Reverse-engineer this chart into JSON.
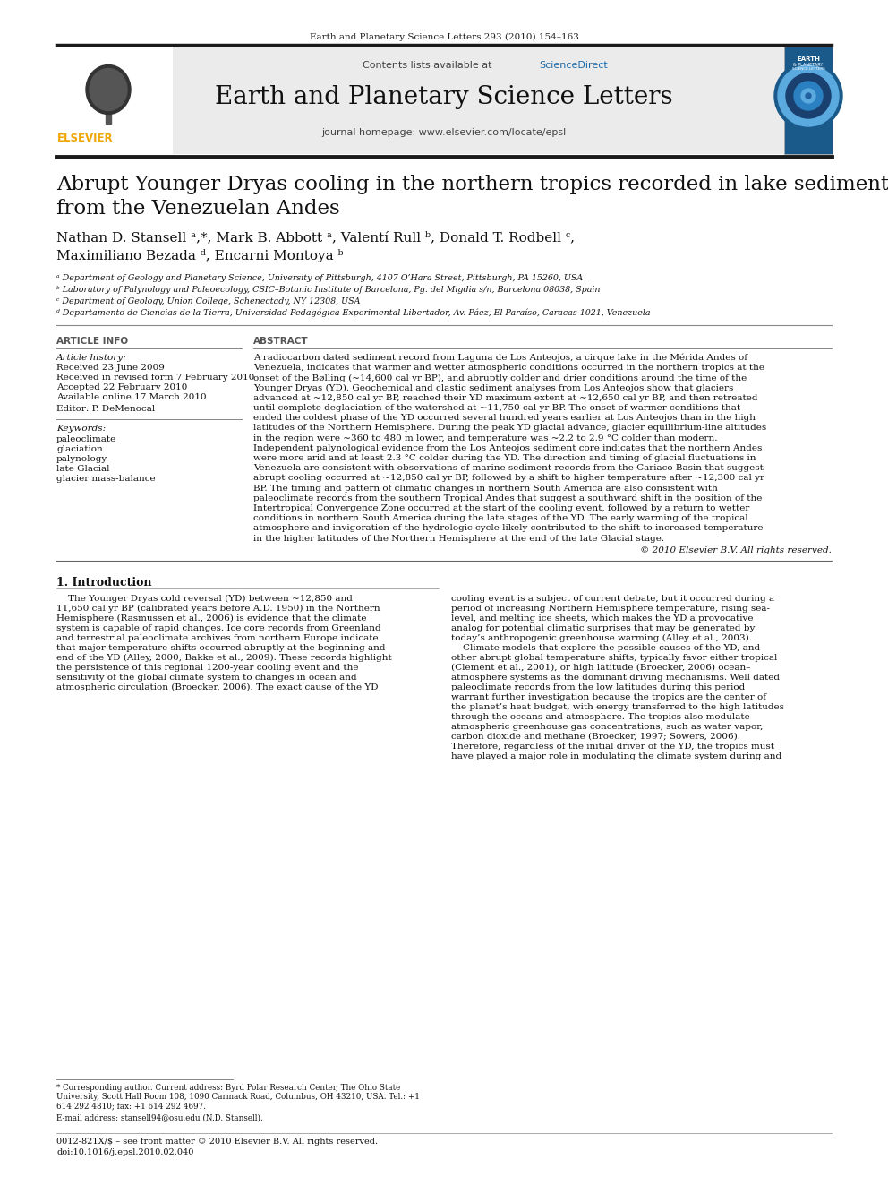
{
  "journal_ref": "Earth and Planetary Science Letters 293 (2010) 154–163",
  "journal_name": "Earth and Planetary Science Letters",
  "journal_homepage": "journal homepage: www.elsevier.com/locate/epsl",
  "contents_line": "Contents lists available at ScienceDirect",
  "paper_title_line1": "Abrupt Younger Dryas cooling in the northern tropics recorded in lake sediments",
  "paper_title_line2": "from the Venezuelan Andes",
  "authors_line1": "Nathan D. Stansell ᵃ,*, Mark B. Abbott ᵃ, Valentí Rull ᵇ, Donald T. Rodbell ᶜ,",
  "authors_line2": "Maximiliano Bezada ᵈ, Encarni Montoya ᵇ",
  "affil_a": "ᵃ Department of Geology and Planetary Science, University of Pittsburgh, 4107 O’Hara Street, Pittsburgh, PA 15260, USA",
  "affil_b": "ᵇ Laboratory of Palynology and Paleoecology, CSIC–Botanic Institute of Barcelona, Pg. del Migdia s/n, Barcelona 08038, Spain",
  "affil_c": "ᶜ Department of Geology, Union College, Schenectady, NY 12308, USA",
  "affil_d": "ᵈ Departamento de Ciencias de la Tierra, Universidad Pedagógica Experimental Libertador, Av. Páez, El Paraíso, Caracas 1021, Venezuela",
  "article_info_label": "ARTICLE INFO",
  "abstract_label": "ABSTRACT",
  "article_history_label": "Article history:",
  "received": "Received 23 June 2009",
  "received_revised": "Received in revised form 7 February 2010",
  "accepted": "Accepted 22 February 2010",
  "available": "Available online 17 March 2010",
  "editor_label": "Editor: P. DeMenocal",
  "keywords_label": "Keywords:",
  "kw1": "paleoclimate",
  "kw2": "glaciation",
  "kw3": "palynology",
  "kw4": "late Glacial",
  "kw5": "glacier mass-balance",
  "abstract_lines": [
    "A radiocarbon dated sediment record from Laguna de Los Anteojos, a cirque lake in the Mérida Andes of",
    "Venezuela, indicates that warmer and wetter atmospheric conditions occurred in the northern tropics at the",
    "onset of the Bølling (~14,600 cal yr BP), and abruptly colder and drier conditions around the time of the",
    "Younger Dryas (YD). Geochemical and clastic sediment analyses from Los Anteojos show that glaciers",
    "advanced at ~12,850 cal yr BP, reached their YD maximum extent at ~12,650 cal yr BP, and then retreated",
    "until complete deglaciation of the watershed at ~11,750 cal yr BP. The onset of warmer conditions that",
    "ended the coldest phase of the YD occurred several hundred years earlier at Los Anteojos than in the high",
    "latitudes of the Northern Hemisphere. During the peak YD glacial advance, glacier equilibrium-line altitudes",
    "in the region were ~360 to 480 m lower, and temperature was ~2.2 to 2.9 °C colder than modern.",
    "Independent palynological evidence from the Los Anteojos sediment core indicates that the northern Andes",
    "were more arid and at least 2.3 °C colder during the YD. The direction and timing of glacial fluctuations in",
    "Venezuela are consistent with observations of marine sediment records from the Cariaco Basin that suggest",
    "abrupt cooling occurred at ~12,850 cal yr BP, followed by a shift to higher temperature after ~12,300 cal yr",
    "BP. The timing and pattern of climatic changes in northern South America are also consistent with",
    "paleoclimate records from the southern Tropical Andes that suggest a southward shift in the position of the",
    "Intertropical Convergence Zone occurred at the start of the cooling event, followed by a return to wetter",
    "conditions in northern South America during the late stages of the YD. The early warming of the tropical",
    "atmosphere and invigoration of the hydrologic cycle likely contributed to the shift to increased temperature",
    "in the higher latitudes of the Northern Hemisphere at the end of the late Glacial stage."
  ],
  "copyright": "© 2010 Elsevier B.V. All rights reserved.",
  "intro_heading": "1. Introduction",
  "intro_col1_lines": [
    "    The Younger Dryas cold reversal (YD) between ~12,850 and",
    "11,650 cal yr BP (calibrated years before A.D. 1950) in the Northern",
    "Hemisphere (Rasmussen et al., 2006) is evidence that the climate",
    "system is capable of rapid changes. Ice core records from Greenland",
    "and terrestrial paleoclimate archives from northern Europe indicate",
    "that major temperature shifts occurred abruptly at the beginning and",
    "end of the YD (Alley, 2000; Bakke et al., 2009). These records highlight",
    "the persistence of this regional 1200-year cooling event and the",
    "sensitivity of the global climate system to changes in ocean and",
    "atmospheric circulation (Broecker, 2006). The exact cause of the YD"
  ],
  "intro_col2_lines": [
    "cooling event is a subject of current debate, but it occurred during a",
    "period of increasing Northern Hemisphere temperature, rising sea-",
    "level, and melting ice sheets, which makes the YD a provocative",
    "analog for potential climatic surprises that may be generated by",
    "today’s anthropogenic greenhouse warming (Alley et al., 2003).",
    "    Climate models that explore the possible causes of the YD, and",
    "other abrupt global temperature shifts, typically favor either tropical",
    "(Clement et al., 2001), or high latitude (Broecker, 2006) ocean–",
    "atmosphere systems as the dominant driving mechanisms. Well dated",
    "paleoclimate records from the low latitudes during this period",
    "warrant further investigation because the tropics are the center of",
    "the planet’s heat budget, with energy transferred to the high latitudes",
    "through the oceans and atmosphere. The tropics also modulate",
    "atmospheric greenhouse gas concentrations, such as water vapor,",
    "carbon dioxide and methane (Broecker, 1997; Sowers, 2006).",
    "Therefore, regardless of the initial driver of the YD, the tropics must",
    "have played a major role in modulating the climate system during and"
  ],
  "footnote_corresp_lines": [
    "* Corresponding author. Current address: Byrd Polar Research Center, The Ohio State",
    "University, Scott Hall Room 108, 1090 Carmack Road, Columbus, OH 43210, USA. Tel.: +1",
    "614 292 4810; fax: +1 614 292 4697."
  ],
  "footnote_email": "E-mail address: stansell94@osu.edu (N.D. Stansell).",
  "footer_issn": "0012-821X/$ – see front matter © 2010 Elsevier B.V. All rights reserved.",
  "footer_doi": "doi:10.1016/j.epsl.2010.02.040",
  "bg_color": "#ffffff",
  "header_bg": "#ebebeb",
  "sciencedirect_color": "#1a6aaa",
  "elsevier_orange": "#f0a500",
  "separator_color": "#1a1a1a"
}
